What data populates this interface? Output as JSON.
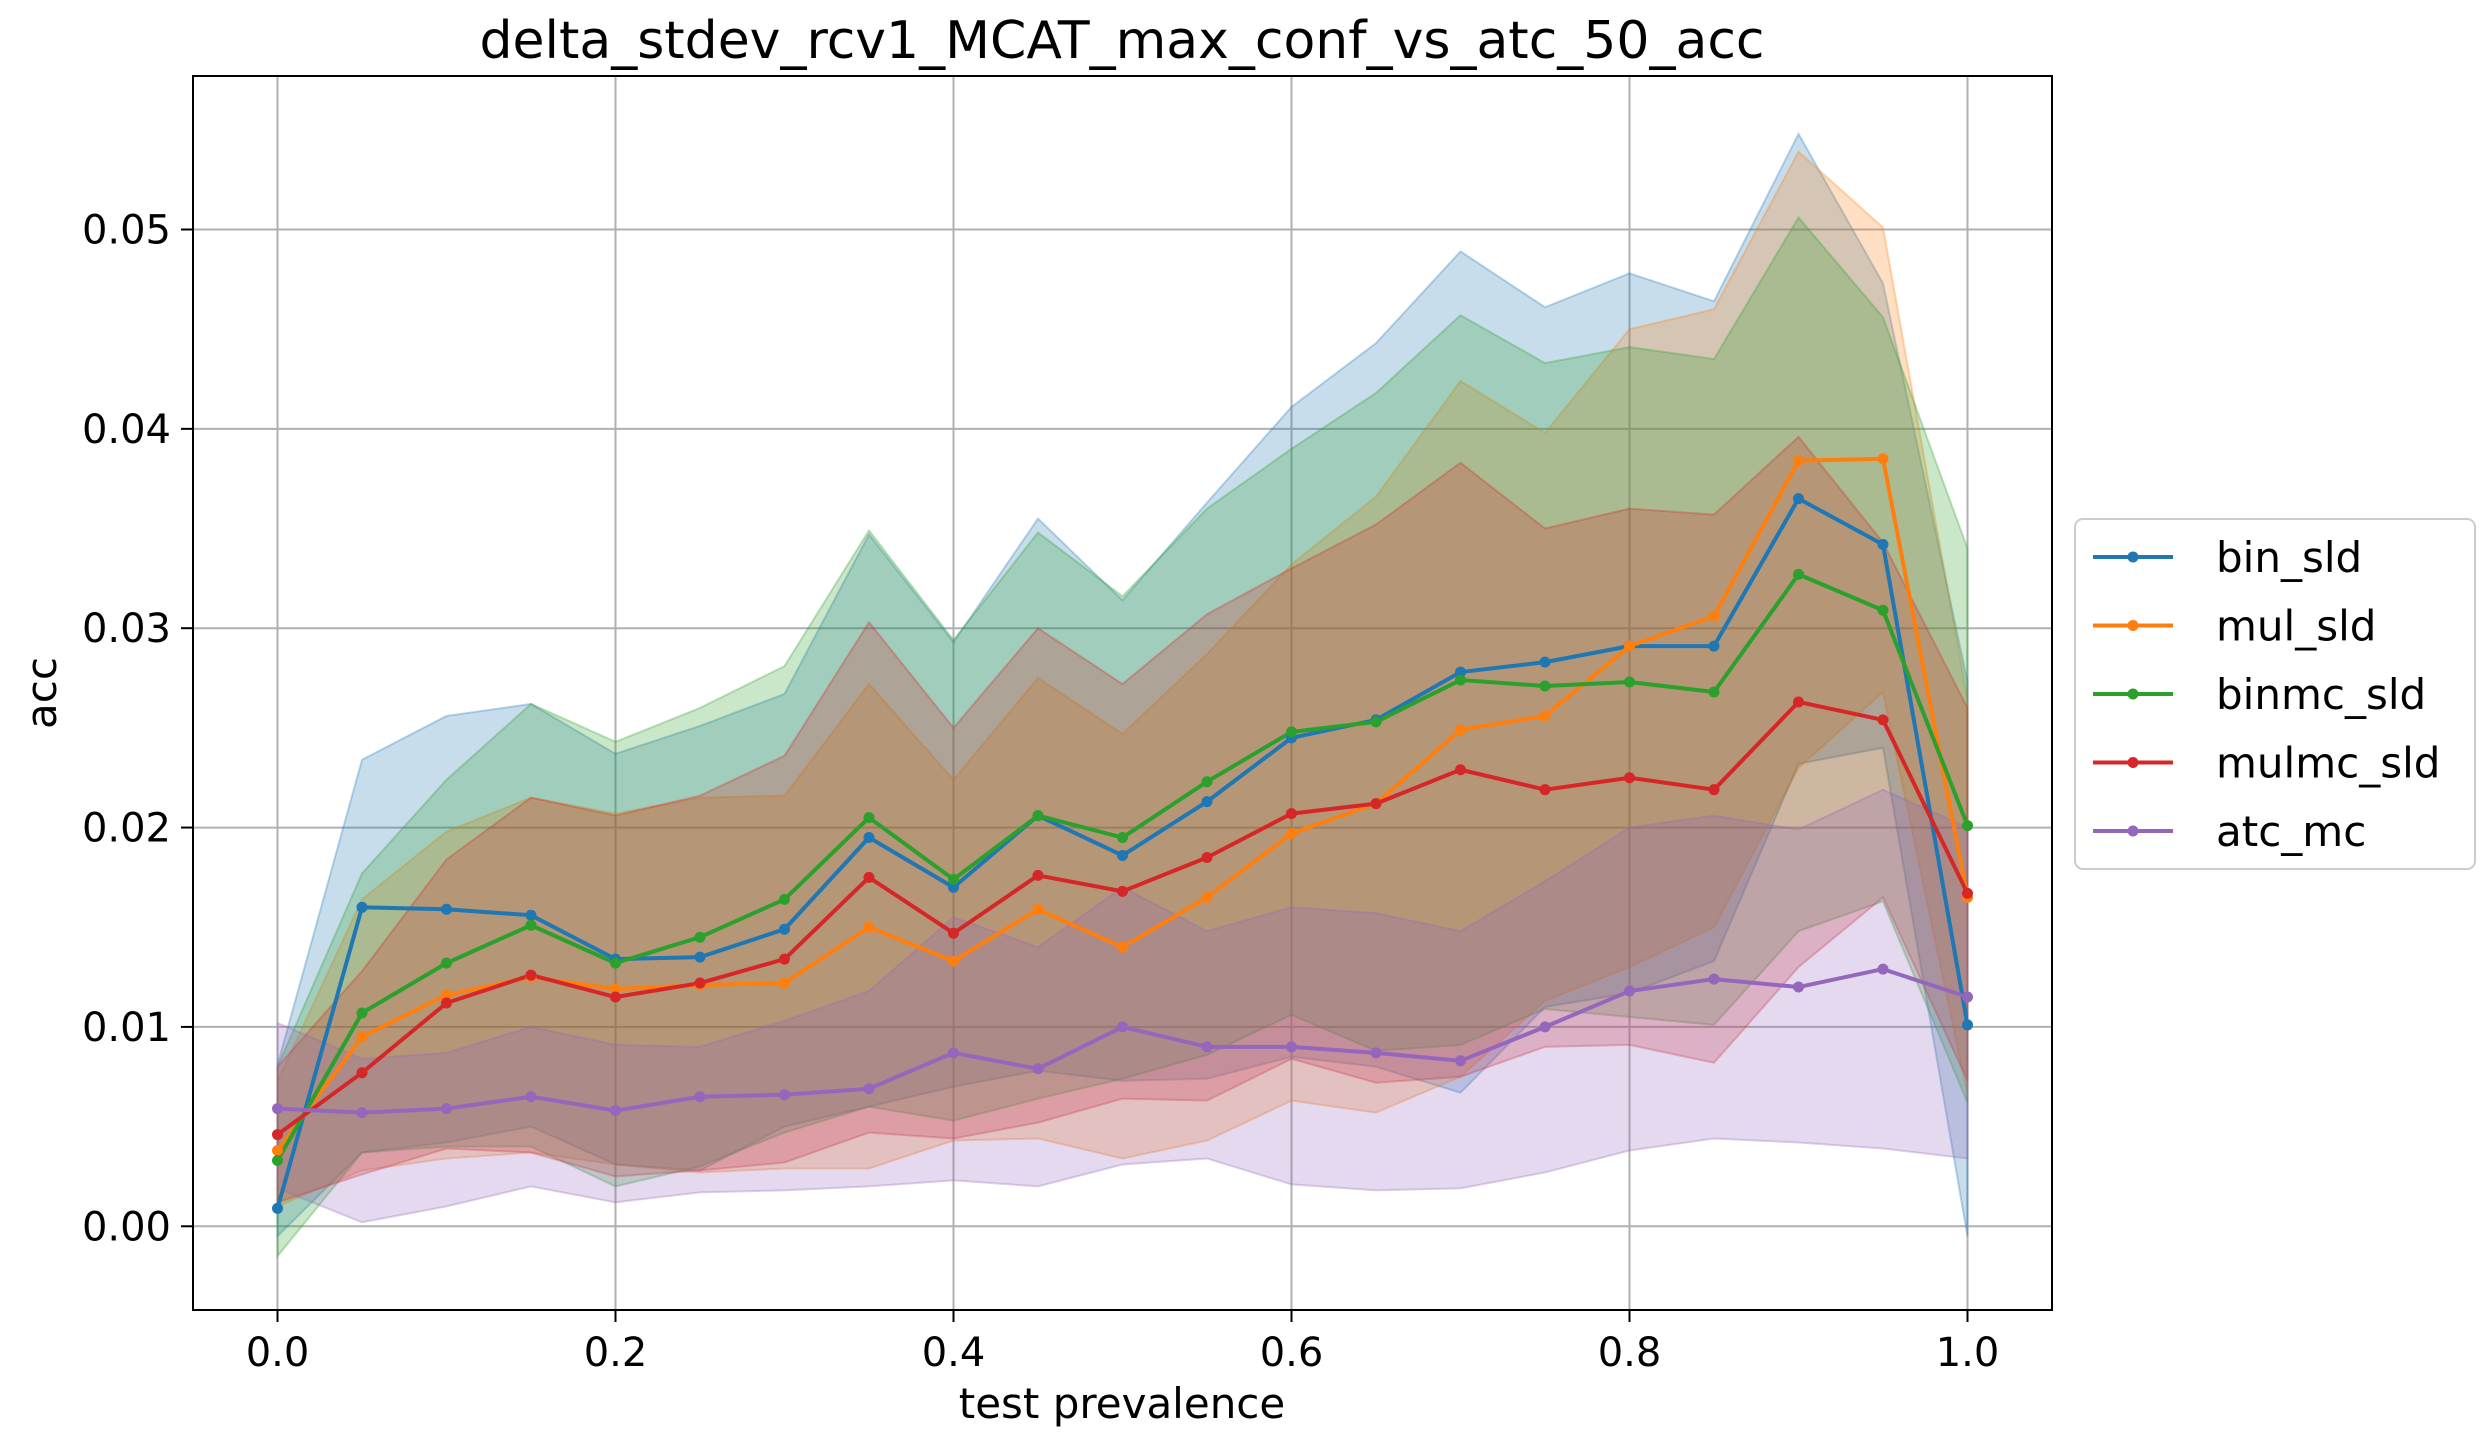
{
  "chart_data": {
    "type": "line",
    "title": "delta_stdev_rcv1_MCAT_max_conf_vs_atc_50_acc",
    "xlabel": "test prevalence",
    "ylabel": "acc",
    "xlim": [
      -0.05,
      1.05
    ],
    "ylim": [
      -0.0042,
      0.0577
    ],
    "xticks": [
      "0.0",
      "0.2",
      "0.4",
      "0.6",
      "0.8",
      "1.0"
    ],
    "yticks": [
      "0.00",
      "0.01",
      "0.02",
      "0.03",
      "0.04",
      "0.05"
    ],
    "grid": true,
    "legend_position": "right, outside plot",
    "x": [
      0.0,
      0.05,
      0.1,
      0.15,
      0.2,
      0.25,
      0.3,
      0.35,
      0.4,
      0.45,
      0.5,
      0.55,
      0.6,
      0.65,
      0.7,
      0.75,
      0.8,
      0.85,
      0.9,
      0.95,
      1.0
    ],
    "series": [
      {
        "name": "bin_sld",
        "color": "#1f77b4",
        "values": [
          0.0009,
          0.016,
          0.0159,
          0.0156,
          0.0134,
          0.0135,
          0.0149,
          0.0195,
          0.017,
          0.0206,
          0.0186,
          0.0213,
          0.0245,
          0.0254,
          0.0278,
          0.0283,
          0.0291,
          0.0291,
          0.0365,
          0.0342,
          0.0101
        ],
        "upper": [
          0.0081,
          0.0234,
          0.0256,
          0.0262,
          0.0237,
          0.0251,
          0.0267,
          0.0347,
          0.0293,
          0.0355,
          0.0314,
          0.0363,
          0.0411,
          0.0443,
          0.0489,
          0.0461,
          0.0478,
          0.0464,
          0.0548,
          0.0473,
          0.0273
        ],
        "lower": [
          -0.0005,
          0.0037,
          0.0042,
          0.005,
          0.0031,
          0.0028,
          0.005,
          0.006,
          0.007,
          0.0078,
          0.0073,
          0.0074,
          0.0085,
          0.008,
          0.0067,
          0.011,
          0.0117,
          0.0133,
          0.0232,
          0.024,
          -0.0005
        ]
      },
      {
        "name": "mul_sld",
        "color": "#ff7f0e",
        "values": [
          0.0038,
          0.0095,
          0.0116,
          0.0125,
          0.0119,
          0.0121,
          0.0122,
          0.015,
          0.0133,
          0.0159,
          0.014,
          0.0165,
          0.0197,
          0.0212,
          0.0249,
          0.0256,
          0.0291,
          0.0306,
          0.0384,
          0.0385,
          0.0165
        ],
        "upper": [
          0.0073,
          0.0164,
          0.0198,
          0.0215,
          0.0207,
          0.0215,
          0.0216,
          0.0272,
          0.0224,
          0.0275,
          0.0247,
          0.0287,
          0.0332,
          0.0366,
          0.0424,
          0.0398,
          0.045,
          0.046,
          0.0539,
          0.0501,
          0.0264
        ],
        "lower": [
          0.001,
          0.0028,
          0.0034,
          0.0037,
          0.0031,
          0.0027,
          0.0029,
          0.0029,
          0.0043,
          0.0044,
          0.0034,
          0.0043,
          0.0063,
          0.0057,
          0.0075,
          0.0113,
          0.013,
          0.015,
          0.023,
          0.0268,
          0.0066
        ]
      },
      {
        "name": "binmc_sld",
        "color": "#2ca02c",
        "values": [
          0.0033,
          0.0107,
          0.0132,
          0.0151,
          0.0132,
          0.0145,
          0.0164,
          0.0205,
          0.0174,
          0.0206,
          0.0195,
          0.0223,
          0.0248,
          0.0253,
          0.0274,
          0.0271,
          0.0273,
          0.0268,
          0.0327,
          0.0309,
          0.0201
        ],
        "upper": [
          0.008,
          0.0177,
          0.0224,
          0.0262,
          0.0243,
          0.026,
          0.0281,
          0.0349,
          0.0294,
          0.0348,
          0.0316,
          0.036,
          0.039,
          0.0418,
          0.0457,
          0.0433,
          0.0441,
          0.0435,
          0.0506,
          0.0456,
          0.034
        ],
        "lower": [
          -0.0015,
          0.0037,
          0.004,
          0.004,
          0.002,
          0.003,
          0.0047,
          0.006,
          0.0053,
          0.0064,
          0.0074,
          0.0086,
          0.0106,
          0.0088,
          0.0091,
          0.0109,
          0.0105,
          0.0101,
          0.0148,
          0.0163,
          0.0062
        ]
      },
      {
        "name": "mulmc_sld",
        "color": "#d62728",
        "values": [
          0.0046,
          0.0077,
          0.0112,
          0.0126,
          0.0115,
          0.0122,
          0.0134,
          0.0175,
          0.0147,
          0.0176,
          0.0168,
          0.0185,
          0.0207,
          0.0212,
          0.0229,
          0.0219,
          0.0225,
          0.0219,
          0.0263,
          0.0254,
          0.0167
        ],
        "upper": [
          0.008,
          0.0128,
          0.0184,
          0.0215,
          0.0206,
          0.0216,
          0.0236,
          0.0303,
          0.025,
          0.03,
          0.0272,
          0.0307,
          0.033,
          0.0352,
          0.0383,
          0.035,
          0.036,
          0.0357,
          0.0396,
          0.0343,
          0.026
        ],
        "lower": [
          0.0012,
          0.0026,
          0.0039,
          0.0037,
          0.0025,
          0.0028,
          0.0032,
          0.0047,
          0.0044,
          0.0052,
          0.0064,
          0.0063,
          0.0084,
          0.0072,
          0.0075,
          0.009,
          0.0091,
          0.0082,
          0.013,
          0.0165,
          0.0073
        ]
      },
      {
        "name": "atc_mc",
        "color": "#9467bd",
        "values": [
          0.0059,
          0.0057,
          0.0059,
          0.0065,
          0.0058,
          0.0065,
          0.0066,
          0.0069,
          0.0087,
          0.0079,
          0.01,
          0.009,
          0.009,
          0.0087,
          0.0083,
          0.01,
          0.0118,
          0.0124,
          0.012,
          0.0129,
          0.0115
        ],
        "upper": [
          0.0102,
          0.0084,
          0.0087,
          0.01,
          0.0091,
          0.009,
          0.0103,
          0.0118,
          0.0155,
          0.014,
          0.017,
          0.0148,
          0.016,
          0.0157,
          0.0148,
          0.0173,
          0.02,
          0.0206,
          0.0199,
          0.0219,
          0.02
        ],
        "lower": [
          0.0019,
          0.0002,
          0.001,
          0.002,
          0.0012,
          0.0017,
          0.0018,
          0.002,
          0.0023,
          0.002,
          0.0031,
          0.0034,
          0.0021,
          0.0018,
          0.0019,
          0.0027,
          0.0038,
          0.0044,
          0.0042,
          0.0039,
          0.0034
        ]
      }
    ]
  }
}
